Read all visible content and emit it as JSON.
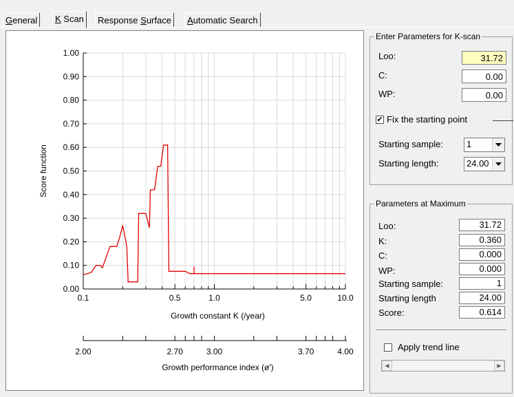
{
  "tabs": [
    {
      "pre": "",
      "ul": "G",
      "post": "eneral"
    },
    {
      "pre": "",
      "ul": "K",
      "post": " Scan"
    },
    {
      "pre": "Response ",
      "ul": "S",
      "post": "urface"
    },
    {
      "pre": "",
      "ul": "A",
      "post": "utomatic Search"
    }
  ],
  "k_scan_params": {
    "title": "Enter Parameters for K-scan",
    "loo_label": "Loo:",
    "loo_value": "31.72",
    "c_label": "C:",
    "c_value": "0.00",
    "wp_label": "WP:",
    "wp_value": "0.00",
    "fix_label": "Fix the starting point",
    "fix_checked": true,
    "start_sample_label": "Starting sample:",
    "start_sample_value": "1",
    "start_length_label": "Starting length:",
    "start_length_value": "24.00"
  },
  "max_params": {
    "title": "Parameters at Maximum",
    "loo_label": "Loo:",
    "loo_value": "31.72",
    "k_label": "K:",
    "k_value": "0.360",
    "c_label": "C:",
    "c_value": "0.000",
    "wp_label": "WP:",
    "wp_value": "0.000",
    "start_sample_label": "Starting sample:",
    "start_sample_value": "1",
    "start_length_label": "Starting length",
    "start_length_value": "24.00",
    "score_label": "Score:",
    "score_value": "0.614"
  },
  "trend": {
    "label": "Apply trend line",
    "checked": false
  },
  "colors": {
    "line": "#e00000",
    "grid": "#d8d8d8",
    "highlight": "#ffffc0"
  },
  "chart_data": {
    "type": "line",
    "ylabel": "Score function",
    "xlabel": "Growth constant K (/year)",
    "xscale": "log",
    "xlim": [
      0.1,
      10.0
    ],
    "ylim": [
      0.0,
      1.0
    ],
    "x_tick_labels": [
      {
        "v": 0.1,
        "t": "0.1"
      },
      {
        "v": 0.5,
        "t": "0.5"
      },
      {
        "v": 1.0,
        "t": "1.0"
      },
      {
        "v": 5.0,
        "t": "5.0"
      },
      {
        "v": 10.0,
        "t": "10.0"
      }
    ],
    "y_ticks": [
      "0.00",
      "0.10",
      "0.20",
      "0.30",
      "0.40",
      "0.50",
      "0.60",
      "0.70",
      "0.80",
      "0.90",
      "1.00"
    ],
    "grid": true,
    "series": [
      {
        "x": [
          0.1,
          0.115,
          0.125,
          0.135,
          0.14,
          0.16,
          0.18,
          0.19,
          0.2,
          0.215,
          0.22,
          0.24,
          0.26,
          0.265,
          0.3,
          0.32,
          0.325,
          0.34,
          0.35,
          0.37,
          0.39,
          0.41,
          0.415,
          0.44,
          0.45,
          0.5,
          0.55,
          0.6,
          0.65,
          0.7,
          0.7,
          0.7,
          0.75,
          1.0,
          10.0
        ],
        "y": [
          0.06,
          0.07,
          0.1,
          0.1,
          0.09,
          0.18,
          0.18,
          0.22,
          0.27,
          0.18,
          0.03,
          0.03,
          0.03,
          0.32,
          0.32,
          0.26,
          0.42,
          0.42,
          0.42,
          0.52,
          0.52,
          0.61,
          0.61,
          0.61,
          0.075,
          0.075,
          0.075,
          0.075,
          0.065,
          0.065,
          0.095,
          0.065,
          0.065,
          0.065,
          0.065
        ]
      }
    ],
    "secondary_axis": {
      "label": "Growth performance index (ø')",
      "tick_labels": [
        {
          "k": 0.1,
          "t": "2.00"
        },
        {
          "k": 0.5,
          "t": "2.70"
        },
        {
          "k": 1.0,
          "t": "3.00"
        },
        {
          "k": 5.0,
          "t": "3.70"
        },
        {
          "k": 10.0,
          "t": "4.00"
        }
      ]
    }
  }
}
